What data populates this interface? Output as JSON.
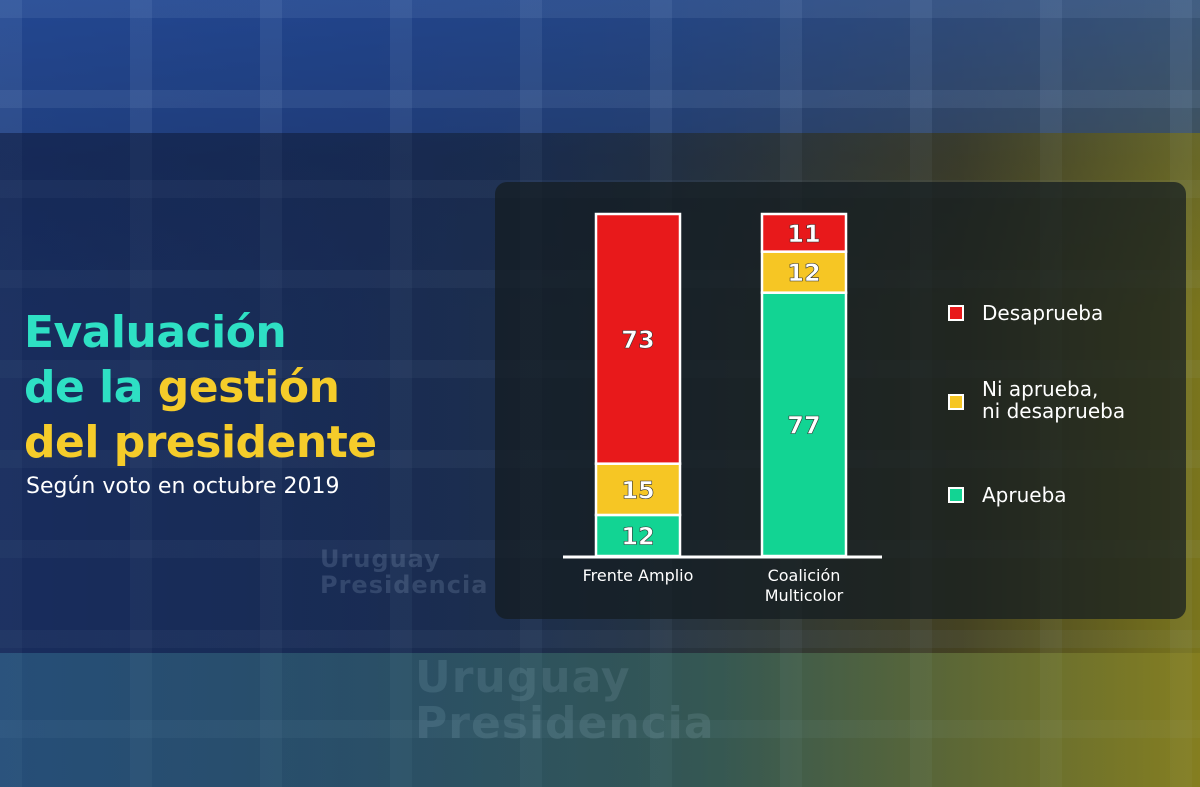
{
  "title": {
    "line1": "Evaluación",
    "line2a": "de la ",
    "line2b": "gestión",
    "line3": "del presidente"
  },
  "subtitle": "Según voto en octubre 2019",
  "watermark": {
    "small": "Uruguay\nPresidencia",
    "large": "Uruguay\nPresidencia"
  },
  "colors": {
    "desaprueba": "#e8191b",
    "ni": "#f6c624",
    "aprueba": "#12d493",
    "teal_title": "#2ee0c4",
    "yellow_title": "#f5cc2a"
  },
  "chart_data": {
    "type": "bar",
    "stacked": true,
    "categories": [
      "Frente Amplio",
      "Coalición Multicolor"
    ],
    "series": [
      {
        "name": "Aprueba",
        "color": "#12d493",
        "values": [
          12,
          77
        ]
      },
      {
        "name": "Ni aprueba, ni desaprueba",
        "color": "#f6c624",
        "values": [
          15,
          12
        ]
      },
      {
        "name": "Desaprueba",
        "color": "#e8191b",
        "values": [
          73,
          11
        ]
      }
    ],
    "ylim": [
      0,
      100
    ],
    "legend_position": "right",
    "legend": [
      {
        "key": "desaprueba",
        "label": "Desaprueba"
      },
      {
        "key": "ni",
        "label": "Ni aprueba,\nni desaprueba"
      },
      {
        "key": "aprueba",
        "label": "Aprueba"
      }
    ]
  }
}
